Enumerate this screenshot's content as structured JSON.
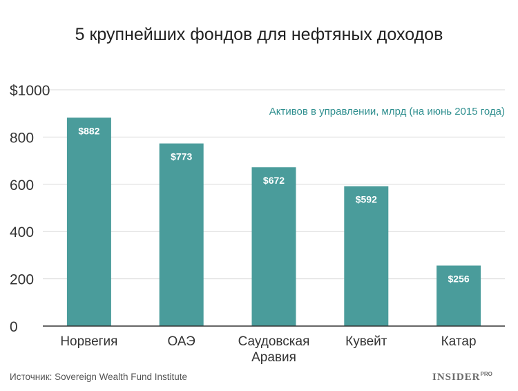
{
  "chart_data": {
    "type": "bar",
    "title": "5 крупнейших фондов для нефтяных доходов",
    "subtitle": "Активов в управлении, млрд (на июнь 2015 года)",
    "categories": [
      [
        "Норвегия"
      ],
      [
        "ОАЭ"
      ],
      [
        "Саудовская",
        "Аравия"
      ],
      [
        "Кувейт"
      ],
      [
        "Катар"
      ]
    ],
    "values": [
      882,
      773,
      672,
      592,
      256
    ],
    "data_labels": [
      "$882",
      "$773",
      "$672",
      "$592",
      "$256"
    ],
    "y_ticks": [
      0,
      200,
      400,
      600,
      800,
      1000
    ],
    "y_tick_labels": [
      "0",
      "200",
      "400",
      "600",
      "800",
      "$1000"
    ],
    "ylim": [
      0,
      1000
    ],
    "grid": true,
    "bar_color": "#4a9c9b",
    "subtitle_color": "#2f8f8f",
    "xlabel": "",
    "ylabel": ""
  },
  "footer": {
    "source": "Источник: Sovereign Wealth Fund Institute",
    "brand": "INSIDER",
    "brand_sup": "PRO"
  }
}
